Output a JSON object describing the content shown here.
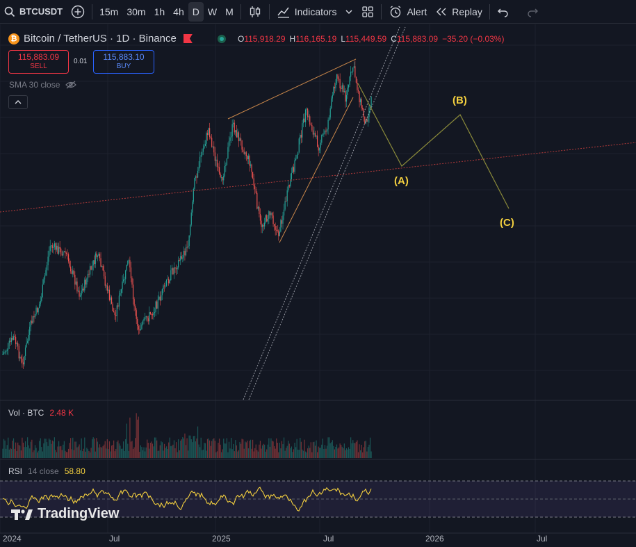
{
  "toolbar": {
    "symbol": "BTCUSDT",
    "intervals": [
      "15m",
      "30m",
      "1h",
      "4h",
      "D",
      "W",
      "M"
    ],
    "active_interval": "D",
    "indicators_label": "Indicators",
    "alert_label": "Alert",
    "replay_label": "Replay"
  },
  "legend": {
    "title": "Bitcoin / TetherUS · 1D · Binance",
    "open_key": "O",
    "open": "115,918.29",
    "high_key": "H",
    "high": "116,165.19",
    "low_key": "L",
    "low": "115,449.59",
    "close_key": "C",
    "close": "115,883.09",
    "change": "−35.20 (−0.03%)"
  },
  "trade": {
    "sell_price": "115,883.09",
    "sell_label": "SELL",
    "spread": "0.01",
    "buy_price": "115,883.10",
    "buy_label": "BUY"
  },
  "indicators": {
    "sma_label": "SMA 30 close",
    "vol_label": "Vol · BTC",
    "vol_value": "2.48 K",
    "rsi_label": "RSI",
    "rsi_params": "14 close",
    "rsi_value": "58.80"
  },
  "waves": {
    "a": "(A)",
    "b": "(B)",
    "c": "(C)"
  },
  "branding": "TradingView",
  "xaxis": [
    "2024",
    "Jul",
    "2025",
    "Jul",
    "2026",
    "Jul"
  ],
  "colors": {
    "up": "#26a69a",
    "down": "#ef5350",
    "wave": "#f4d03f",
    "rsi": "#f4d03f",
    "background": "#131722"
  }
}
